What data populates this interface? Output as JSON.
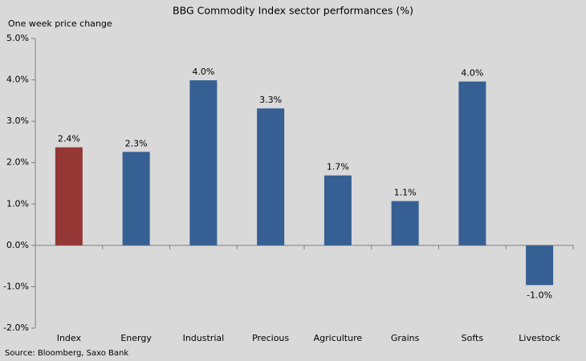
{
  "chart_data": {
    "type": "bar",
    "title": "BBG Commodity  Index sector performances (%)",
    "subtitle": "One week price change",
    "source": "Source: Bloomberg, Saxo Bank",
    "categories": [
      "Index",
      "Energy",
      "Industrial",
      "Precious",
      "Agriculture",
      "Grains",
      "Softs",
      "Livestock"
    ],
    "values": [
      2.37,
      2.26,
      3.99,
      3.31,
      1.69,
      1.07,
      3.96,
      -0.96
    ],
    "value_labels": [
      "2.4%",
      "2.3%",
      "4.0%",
      "3.3%",
      "1.7%",
      "1.1%",
      "4.0%",
      "-1.0%"
    ],
    "colors": [
      "#953735",
      "#365f94",
      "#365f94",
      "#365f94",
      "#365f94",
      "#365f94",
      "#365f94",
      "#365f94"
    ],
    "ylim": [
      -2,
      5
    ],
    "yticks": [
      {
        "value": -2,
        "label": "-2.0%"
      },
      {
        "value": -1,
        "label": "-1.0%"
      },
      {
        "value": 0,
        "label": "0.0%"
      },
      {
        "value": 1,
        "label": "1.0%"
      },
      {
        "value": 2,
        "label": "2.0%"
      },
      {
        "value": 3,
        "label": "3.0%"
      },
      {
        "value": 4,
        "label": "4.0%"
      },
      {
        "value": 5,
        "label": "5.0%"
      }
    ],
    "grid": false
  }
}
